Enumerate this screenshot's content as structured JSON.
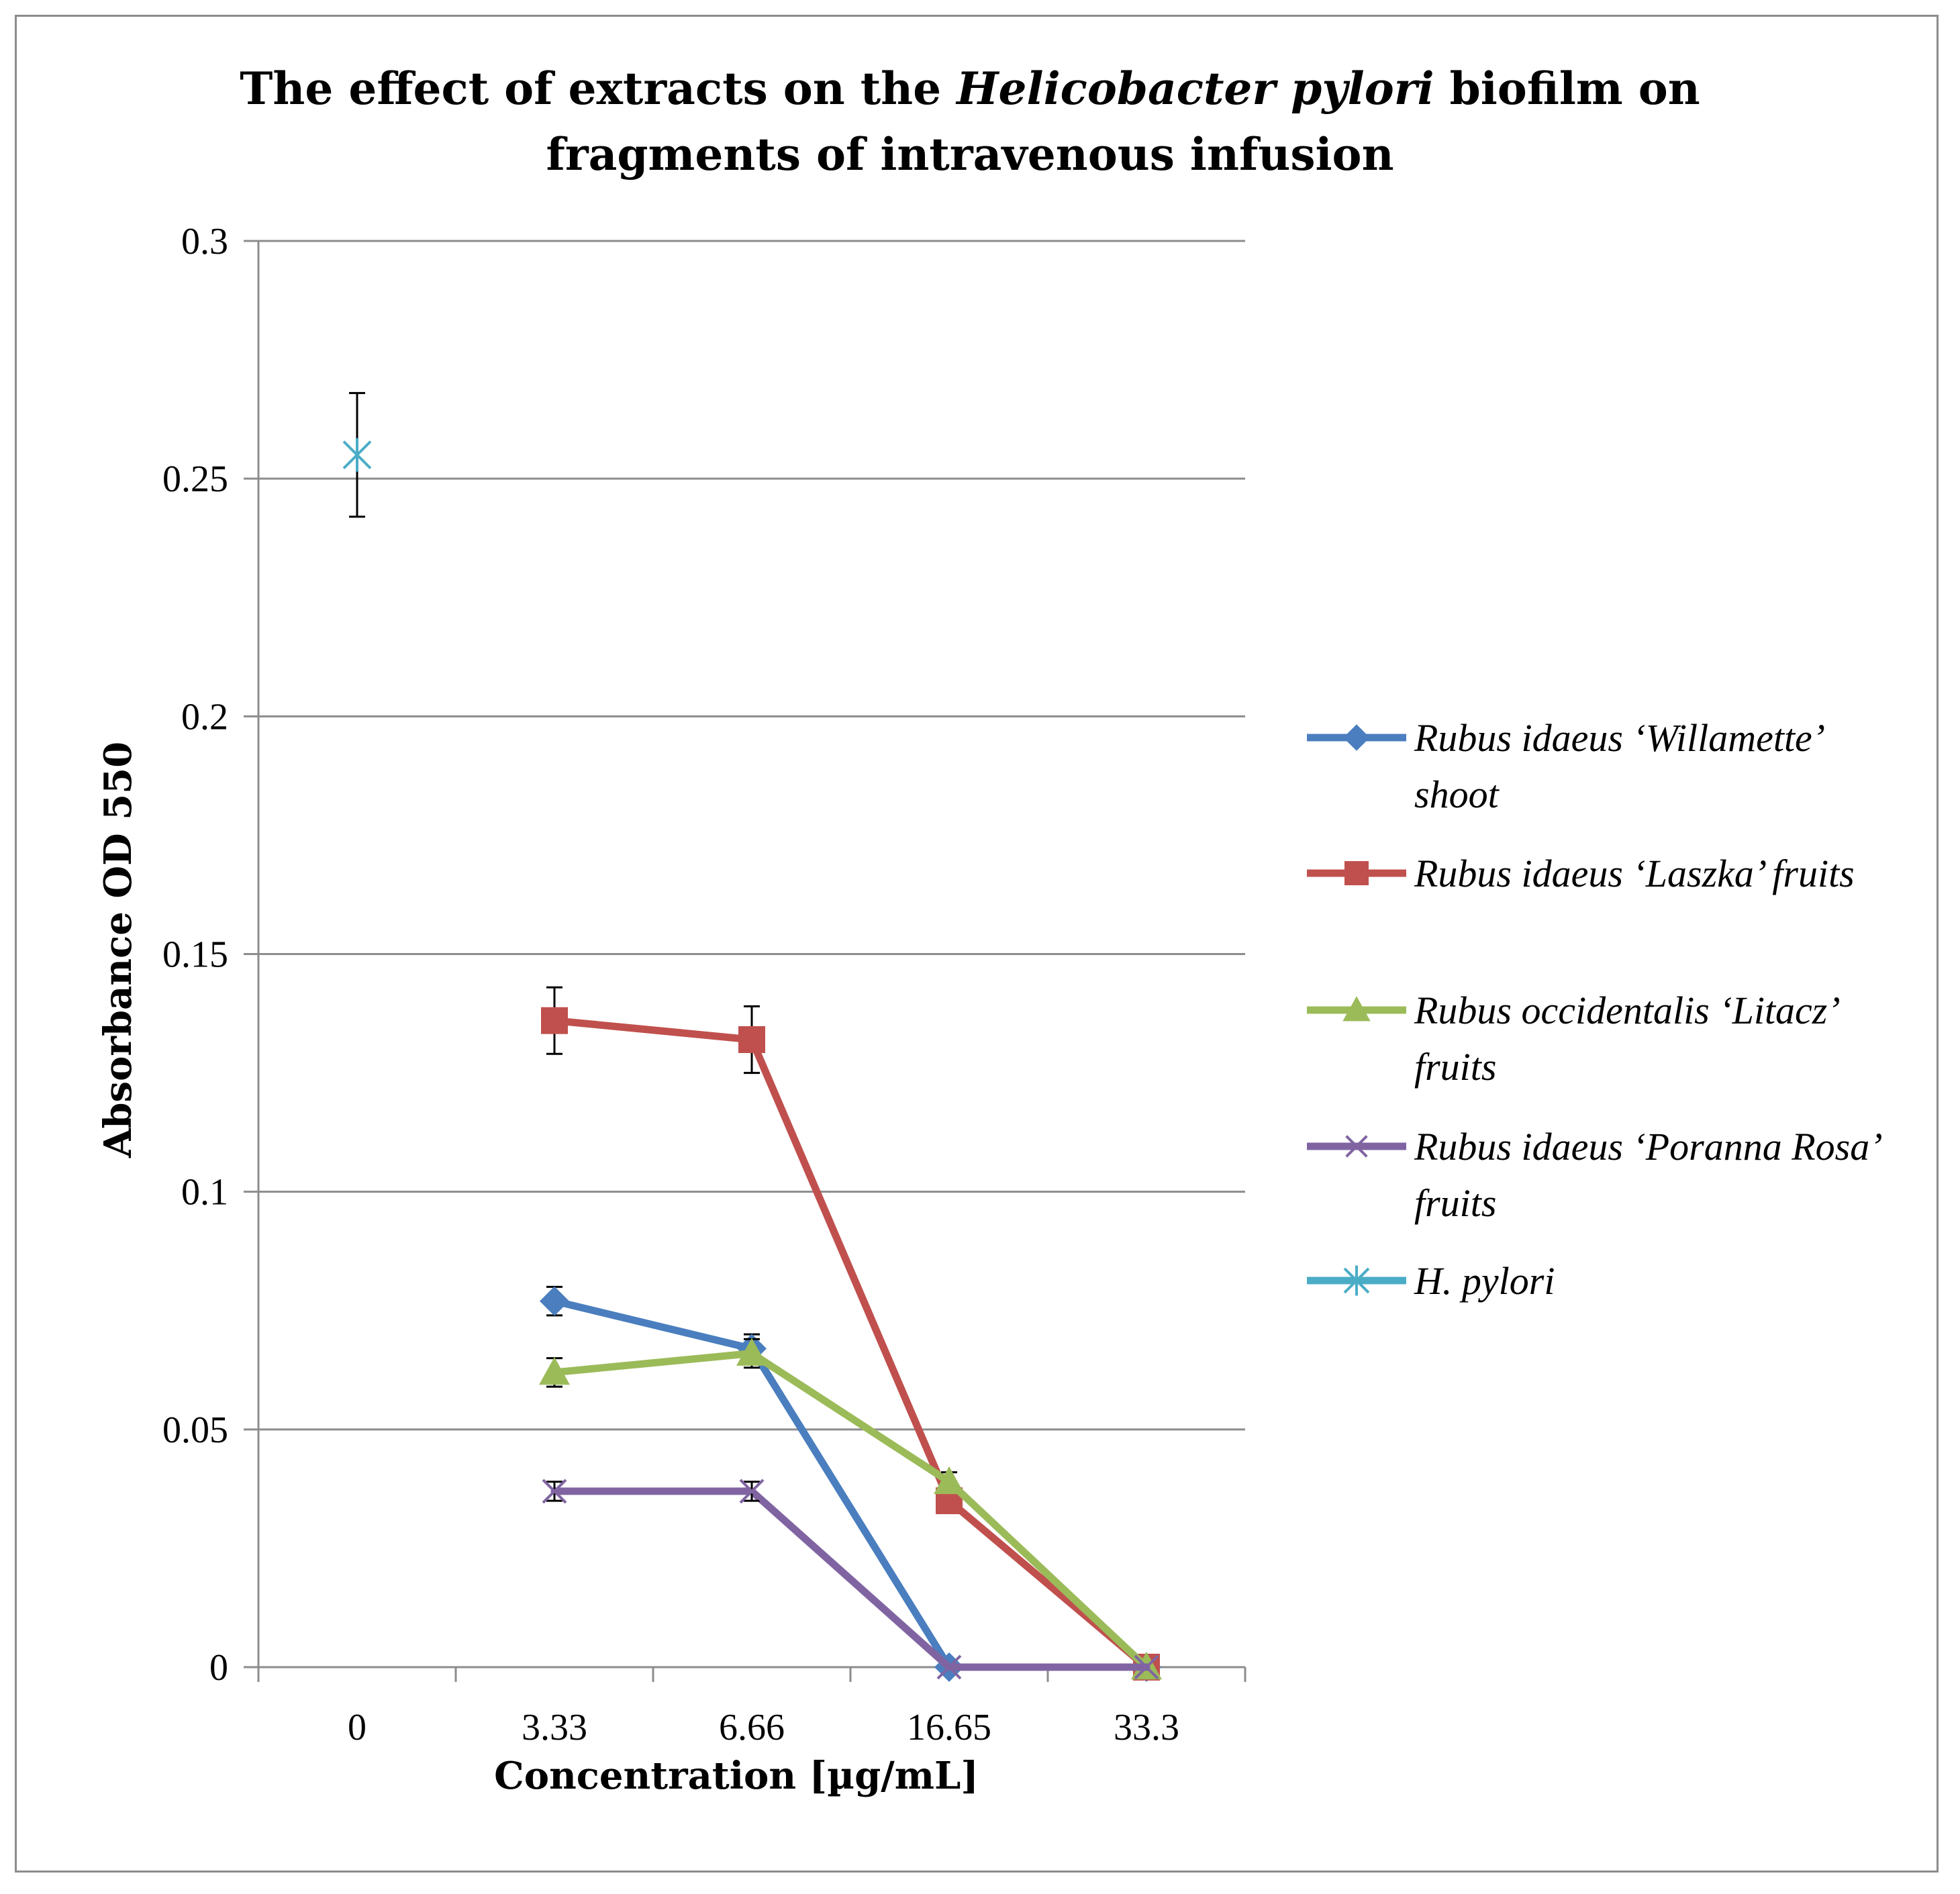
{
  "chart_data": {
    "type": "line",
    "title_parts": [
      "The effect of extracts on the ",
      "Helicobacter pylori",
      " biofilm on"
    ],
    "title_line2": "fragments of intravenous infusion",
    "xlabel": "Concentration [µg/mL]",
    "ylabel": "Absorbance OD 550",
    "categories": [
      "0",
      "3.33",
      "6.66",
      "16.65",
      "33.3"
    ],
    "ylim": [
      0,
      0.3
    ],
    "yticks": [
      "0",
      "0.05",
      "0.1",
      "0.15",
      "0.2",
      "0.25",
      "0.3"
    ],
    "ytick_values": [
      0,
      0.05,
      0.1,
      0.15,
      0.2,
      0.25,
      0.3
    ],
    "grid": true,
    "legend_position": "right",
    "series": [
      {
        "name_lines": [
          "Rubus idaeus ‘Willamette’",
          "shoot"
        ],
        "color": "#4a7ebf",
        "marker": "diamond",
        "values": [
          null,
          0.077,
          0.067,
          0.0,
          0.0
        ],
        "errors": [
          null,
          0.003,
          0.003,
          null,
          null
        ]
      },
      {
        "name_lines": [
          "Rubus idaeus ‘Laszka’ fruits"
        ],
        "color": "#c0504d",
        "marker": "square",
        "values": [
          null,
          0.136,
          0.132,
          0.035,
          0.0
        ],
        "errors": [
          null,
          0.007,
          0.007,
          null,
          null
        ]
      },
      {
        "name_lines": [
          "Rubus occidentalis ‘Litacz’",
          "fruits"
        ],
        "color": "#9bbb59",
        "marker": "triangle",
        "values": [
          null,
          0.062,
          0.066,
          0.039,
          0.0
        ],
        "errors": [
          null,
          0.003,
          0.003,
          0.002,
          null
        ]
      },
      {
        "name_lines": [
          "Rubus idaeus ‘Poranna Rosa’",
          "fruits"
        ],
        "color": "#8064a2",
        "marker": "x",
        "values": [
          null,
          0.037,
          0.037,
          0.0,
          0.0
        ],
        "errors": [
          null,
          0.002,
          0.002,
          null,
          null
        ]
      },
      {
        "name_lines": [
          "H. pylori"
        ],
        "color": "#4bacc6",
        "marker": "star",
        "values": [
          0.255,
          null,
          null,
          null,
          null
        ],
        "errors": [
          0.013,
          null,
          null,
          null,
          null
        ]
      }
    ]
  }
}
